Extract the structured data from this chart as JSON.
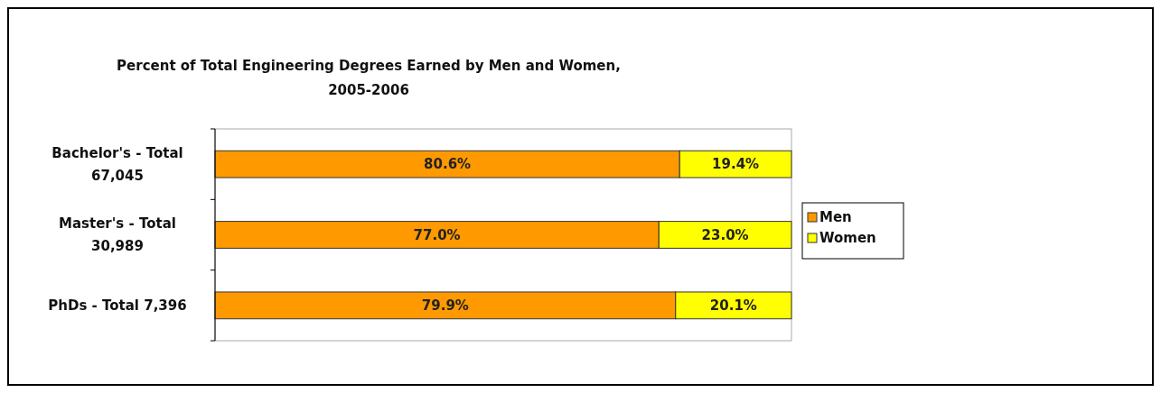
{
  "chart_data": {
    "type": "bar",
    "orientation": "horizontal",
    "stacked": true,
    "title": "Percent of Total Engineering Degrees Earned by Men and Women, 2005-2006",
    "categories": [
      "Bachelor's - Total 67,045",
      "Master's - Total 30,989",
      "PhDs - Total 7,396"
    ],
    "series": [
      {
        "name": "Men",
        "color": "#ff9900",
        "values": [
          80.6,
          77.0,
          79.9
        ],
        "value_labels": [
          "80.6%",
          "77.0%",
          "79.9%"
        ]
      },
      {
        "name": "Women",
        "color": "#ffff00",
        "values": [
          19.4,
          23.0,
          20.1
        ],
        "value_labels": [
          "19.4%",
          "23.0%",
          "20.1%"
        ]
      }
    ],
    "legend": "right"
  }
}
